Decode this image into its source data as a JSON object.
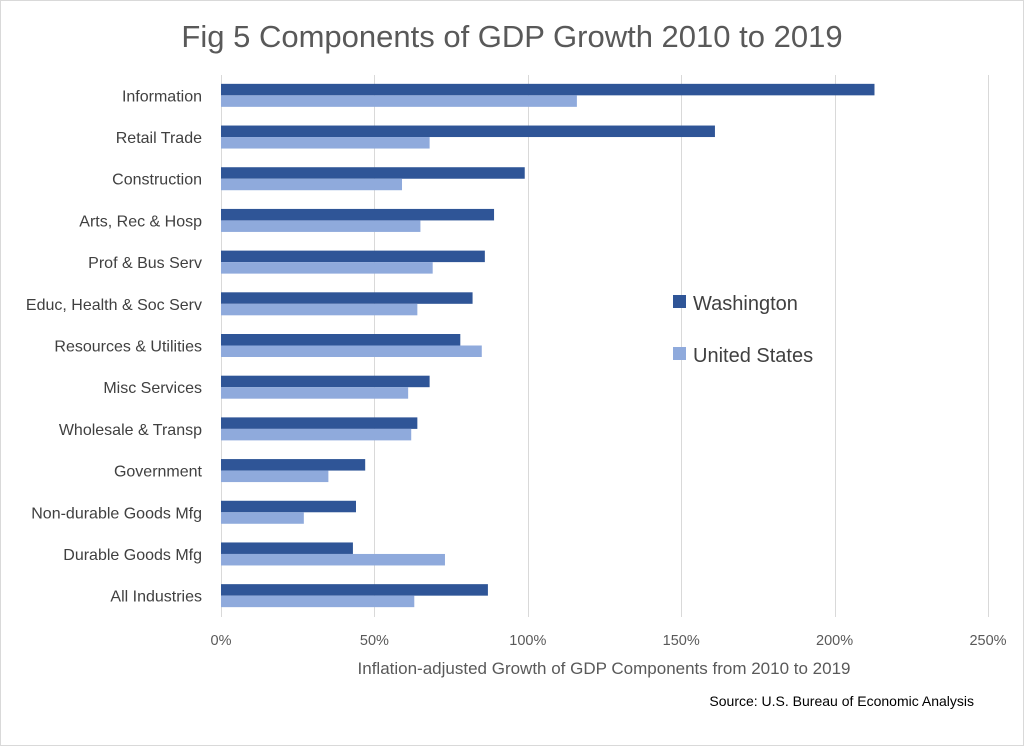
{
  "chart_data": {
    "type": "bar",
    "orientation": "horizontal",
    "title": "Fig 5 Components of GDP Growth 2010 to 2019",
    "xlabel": "Inflation-adjusted Growth of GDP Components from 2010 to 2019",
    "ylabel": "",
    "source": "Source: U.S. Bureau of Economic Analysis",
    "categories": [
      "Information",
      "Retail Trade",
      "Construction",
      "Arts, Rec & Hosp",
      "Prof & Bus Serv",
      "Educ, Health & Soc Serv",
      "Resources & Utilities",
      "Misc Services",
      "Wholesale & Transp",
      "Government",
      "Non-durable Goods Mfg",
      "Durable Goods Mfg",
      "All Industries"
    ],
    "series": [
      {
        "name": "Washington",
        "color": "#2f5597",
        "values": [
          213,
          161,
          99,
          89,
          86,
          82,
          78,
          68,
          64,
          47,
          44,
          43,
          87
        ]
      },
      {
        "name": "United States",
        "color": "#8faadc",
        "values": [
          116,
          68,
          59,
          65,
          69,
          64,
          85,
          61,
          62,
          35,
          27,
          73,
          63
        ]
      }
    ],
    "xlim": [
      0,
      250
    ],
    "xticks": [
      0,
      50,
      100,
      150,
      200,
      250
    ],
    "xtick_labels": [
      "0%",
      "50%",
      "100%",
      "150%",
      "200%",
      "250%"
    ],
    "grid": true,
    "legend_position": "right"
  }
}
